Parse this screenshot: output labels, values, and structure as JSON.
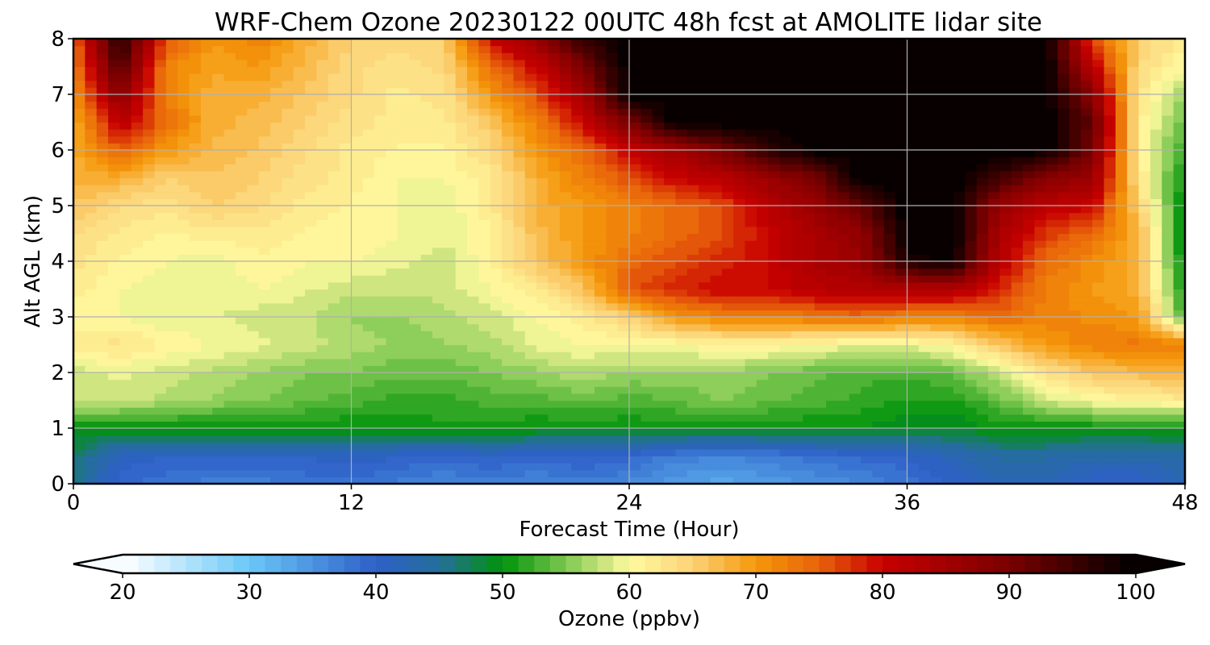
{
  "chart_data": {
    "type": "heatmap",
    "title": "WRF-Chem Ozone  20230122 00UTC 48h fcst at AMOLITE lidar site",
    "xlabel": "Forecast Time (Hour)",
    "ylabel": "Alt AGL (km)",
    "xlim": [
      0,
      48
    ],
    "ylim": [
      0,
      8
    ],
    "xticks": [
      0,
      12,
      24,
      36,
      48
    ],
    "yticks": [
      0,
      1,
      2,
      3,
      4,
      5,
      6,
      7,
      8
    ],
    "grid": true,
    "x": [
      0,
      2,
      4,
      6,
      8,
      10,
      12,
      14,
      16,
      18,
      20,
      22,
      24,
      26,
      28,
      30,
      32,
      34,
      36,
      38,
      40,
      42,
      44,
      46,
      48
    ],
    "y": [
      0,
      0.5,
      1,
      1.5,
      2,
      2.5,
      3,
      3.5,
      4,
      4.5,
      5,
      5.5,
      6,
      6.5,
      7,
      7.5,
      8
    ],
    "z": [
      [
        46,
        39,
        38,
        37,
        37,
        38,
        38,
        37,
        36,
        37,
        36,
        37,
        36,
        34,
        33,
        34,
        35,
        36,
        38,
        40,
        42,
        42,
        40,
        40,
        42
      ],
      [
        47,
        41,
        40,
        40,
        40,
        40,
        41,
        40,
        39,
        40,
        39,
        40,
        39,
        37,
        36,
        37,
        38,
        39,
        40,
        42,
        44,
        44,
        43,
        43,
        44
      ],
      [
        50,
        50,
        50,
        50,
        50,
        50,
        50,
        50,
        51,
        51,
        50,
        50,
        50,
        50,
        50,
        50,
        50,
        50,
        49,
        49,
        50,
        50,
        50,
        50,
        50
      ],
      [
        58,
        58,
        57,
        56,
        55,
        54,
        53,
        52,
        52,
        53,
        53,
        54,
        53,
        54,
        55,
        54,
        53,
        52,
        51,
        51,
        54,
        58,
        60,
        61,
        62
      ],
      [
        58,
        59,
        58,
        57,
        56,
        55,
        55,
        54,
        54,
        55,
        56,
        57,
        56,
        56,
        56,
        55,
        54,
        53,
        53,
        54,
        58,
        63,
        66,
        67,
        68
      ],
      [
        62,
        63,
        61,
        60,
        59,
        58,
        57,
        56,
        56,
        57,
        59,
        60,
        60,
        60,
        61,
        61,
        60,
        59,
        59,
        61,
        66,
        70,
        72,
        73,
        73
      ],
      [
        60,
        60,
        59,
        59,
        58,
        58,
        56,
        56,
        57,
        58,
        60,
        62,
        65,
        70,
        72,
        72,
        73,
        74,
        72,
        72,
        74,
        72,
        71,
        70,
        52
      ],
      [
        62,
        60,
        59,
        59,
        60,
        59,
        58,
        58,
        58,
        60,
        62,
        66,
        76,
        78,
        80,
        80,
        82,
        83,
        83,
        83,
        78,
        72,
        70,
        68,
        50
      ],
      [
        63,
        61,
        60,
        59,
        61,
        60,
        60,
        59,
        58,
        61,
        66,
        70,
        74,
        76,
        78,
        80,
        84,
        86,
        98,
        99,
        82,
        74,
        71,
        68,
        49
      ],
      [
        64,
        62,
        61,
        62,
        62,
        61,
        61,
        60,
        59,
        61,
        67,
        70,
        72,
        74,
        76,
        80,
        84,
        87,
        100,
        100,
        84,
        77,
        74,
        68,
        48
      ],
      [
        66,
        64,
        63,
        65,
        64,
        62,
        61,
        60,
        59,
        62,
        68,
        70,
        72,
        74,
        76,
        82,
        86,
        92,
        100,
        100,
        86,
        82,
        80,
        65,
        49
      ],
      [
        68,
        68,
        65,
        66,
        65,
        63,
        62,
        60,
        60,
        62,
        68,
        72,
        76,
        80,
        82,
        86,
        90,
        100,
        100,
        100,
        95,
        88,
        86,
        63,
        50
      ],
      [
        68,
        75,
        70,
        67,
        66,
        64,
        62,
        61,
        61,
        64,
        70,
        74,
        80,
        85,
        90,
        96,
        100,
        100,
        100,
        100,
        100,
        100,
        90,
        62,
        52
      ],
      [
        68,
        82,
        74,
        68,
        67,
        65,
        63,
        62,
        62,
        66,
        72,
        80,
        90,
        100,
        100,
        100,
        100,
        100,
        100,
        100,
        100,
        100,
        92,
        62,
        54
      ],
      [
        70,
        88,
        72,
        68,
        68,
        66,
        64,
        62,
        63,
        70,
        76,
        85,
        100,
        100,
        100,
        100,
        100,
        100,
        100,
        100,
        100,
        100,
        88,
        63,
        56
      ],
      [
        72,
        94,
        72,
        69,
        70,
        67,
        64,
        63,
        64,
        74,
        80,
        90,
        100,
        100,
        100,
        100,
        100,
        100,
        100,
        100,
        100,
        100,
        82,
        64,
        60
      ],
      [
        74,
        98,
        76,
        70,
        72,
        68,
        65,
        64,
        65,
        80,
        86,
        96,
        100,
        100,
        100,
        100,
        100,
        100,
        100,
        100,
        100,
        100,
        76,
        65,
        62
      ]
    ],
    "colorbar": {
      "label": "Ozone  (ppbv)",
      "min": 20,
      "max": 100,
      "step": 1.25,
      "ticks": [
        20,
        30,
        40,
        50,
        60,
        70,
        80,
        90,
        100
      ],
      "extend": "both",
      "orientation": "horizontal",
      "color_stops": [
        [
          20,
          "#ffffff"
        ],
        [
          30,
          "#6ac8f8"
        ],
        [
          40,
          "#2e5fc8"
        ],
        [
          45,
          "#246e9a"
        ],
        [
          50,
          "#00920a"
        ],
        [
          55,
          "#7ec850"
        ],
        [
          58,
          "#cce57e"
        ],
        [
          60,
          "#fffba0"
        ],
        [
          65,
          "#fcd276"
        ],
        [
          70,
          "#f5980a"
        ],
        [
          75,
          "#e8620a"
        ],
        [
          80,
          "#c80000"
        ],
        [
          90,
          "#7a0000"
        ],
        [
          100,
          "#000000"
        ]
      ]
    },
    "colors": {
      "gridline": "#b0b0b0",
      "axis": "#000000"
    }
  }
}
